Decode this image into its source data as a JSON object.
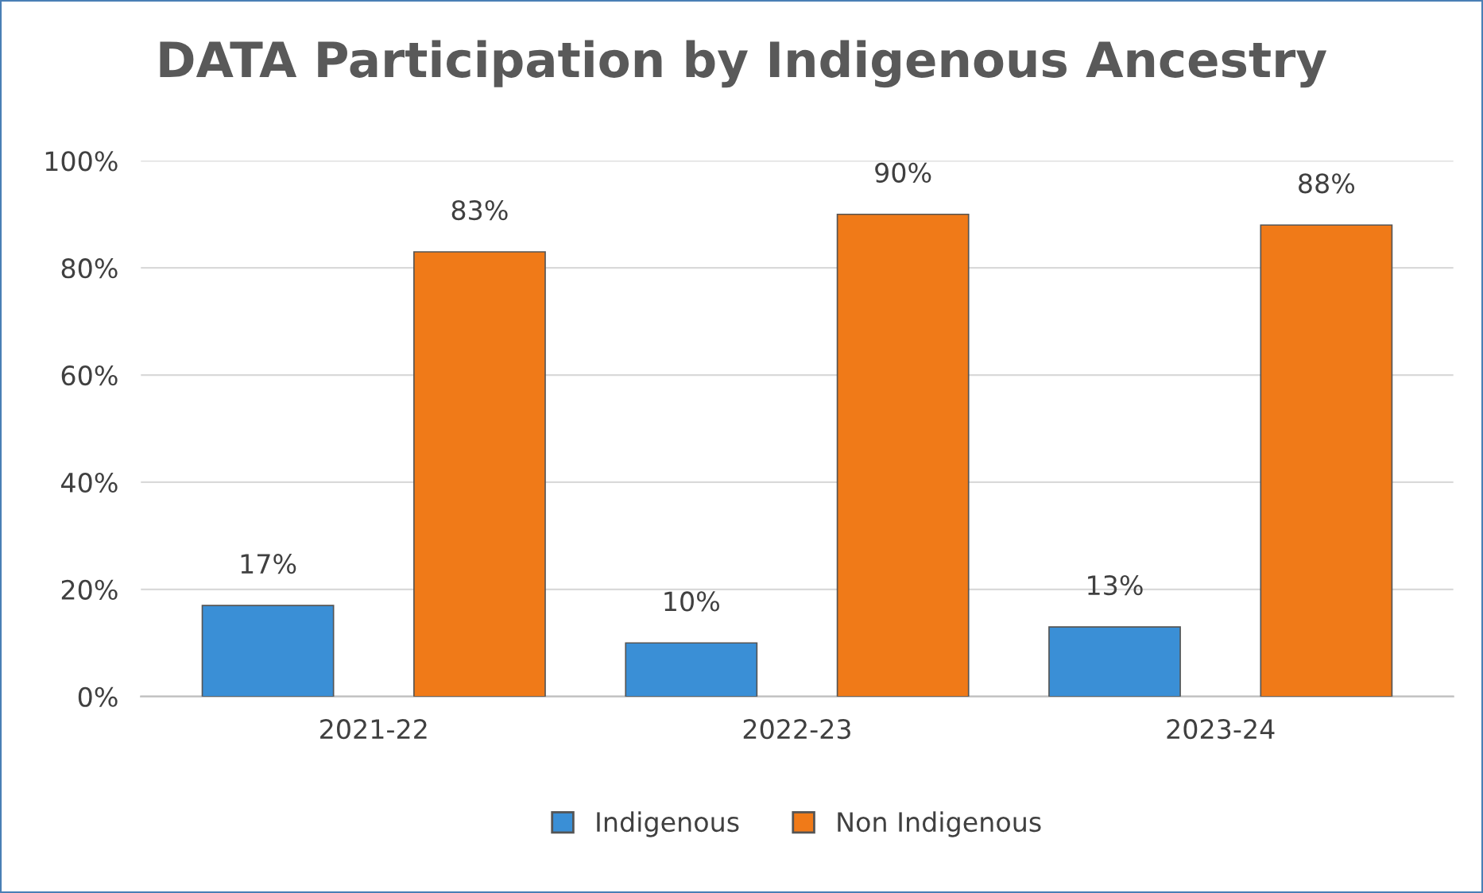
{
  "chart_data": {
    "type": "bar",
    "title": "DATA Participation by Indigenous Ancestry",
    "categories": [
      "2021-22",
      "2022-23",
      "2023-24"
    ],
    "series": [
      {
        "name": "Indigenous",
        "color": "#3a8fd6",
        "values": [
          17,
          10,
          13
        ],
        "value_labels": [
          "17%",
          "10%",
          "13%"
        ]
      },
      {
        "name": "Non Indigenous",
        "color": "#f07a18",
        "values": [
          83,
          90,
          88
        ],
        "value_labels": [
          "83%",
          "90%",
          "88%"
        ]
      }
    ],
    "ylim": [
      0,
      100
    ],
    "yticks": [
      {
        "value": 0,
        "label": "0%"
      },
      {
        "value": 20,
        "label": "20%"
      },
      {
        "value": 40,
        "label": "40%"
      },
      {
        "value": 60,
        "label": "60%"
      },
      {
        "value": 80,
        "label": "80%"
      },
      {
        "value": 100,
        "label": "100%"
      }
    ],
    "grid": "y",
    "legend": "bottom"
  }
}
